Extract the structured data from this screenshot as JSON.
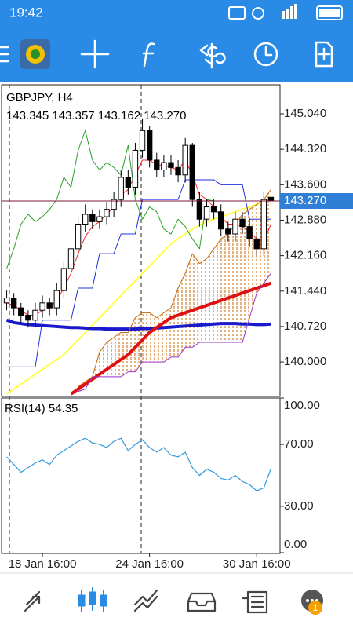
{
  "status_bar": {
    "time": "19:42"
  },
  "chart_data": {
    "type": "candlestick",
    "title": "GBPJPY, H4",
    "last_bar_labels": [
      "143.345",
      "143.357",
      "143.162",
      "143.270"
    ],
    "categories": [
      null,
      null,
      null,
      null,
      null,
      "18 Jan 16:00",
      null,
      null,
      null,
      null,
      null,
      null,
      null,
      null,
      null,
      null,
      null,
      null,
      null,
      null,
      "24 Jan 16:00",
      null,
      null,
      null,
      null,
      null,
      null,
      null,
      null,
      null,
      null,
      null,
      null,
      null,
      null,
      "30 Jan 16:00",
      null,
      null
    ],
    "open": [
      141.2,
      141.3,
      141.1,
      140.95,
      140.85,
      141.05,
      141.2,
      141.1,
      141.45,
      141.9,
      142.3,
      142.8,
      143.0,
      142.85,
      142.95,
      143.1,
      143.3,
      143.75,
      143.55,
      144.3,
      144.7,
      144.1,
      143.9,
      144.05,
      143.95,
      143.8,
      144.4,
      143.3,
      142.9,
      143.15,
      143.05,
      142.7,
      142.6,
      142.9,
      142.75,
      142.5,
      142.3,
      143.345
    ],
    "high": [
      141.45,
      141.4,
      141.2,
      141.05,
      141.2,
      141.35,
      141.3,
      141.6,
      142.05,
      142.45,
      142.95,
      143.2,
      143.1,
      143.1,
      143.25,
      143.45,
      143.9,
      143.9,
      144.45,
      144.95,
      144.8,
      144.25,
      144.2,
      144.2,
      144.1,
      144.55,
      144.45,
      143.45,
      143.3,
      143.3,
      143.2,
      142.85,
      143.05,
      143.05,
      142.9,
      142.65,
      143.45,
      143.357
    ],
    "low": [
      141.05,
      140.95,
      140.8,
      140.7,
      140.7,
      140.9,
      140.95,
      140.95,
      141.3,
      141.75,
      142.15,
      142.65,
      142.7,
      142.7,
      142.8,
      142.95,
      143.15,
      143.4,
      143.4,
      144.15,
      143.95,
      143.75,
      143.75,
      143.8,
      143.65,
      143.65,
      143.15,
      142.75,
      142.75,
      142.9,
      142.55,
      142.45,
      142.45,
      142.6,
      142.35,
      142.15,
      142.15,
      143.162
    ],
    "close": [
      141.3,
      141.1,
      140.95,
      140.85,
      141.05,
      141.2,
      141.1,
      141.45,
      141.9,
      142.3,
      142.8,
      143.0,
      142.85,
      142.95,
      143.1,
      143.3,
      143.75,
      143.55,
      144.3,
      144.7,
      144.1,
      143.9,
      144.05,
      143.95,
      143.8,
      144.4,
      143.3,
      142.9,
      143.15,
      143.05,
      142.7,
      142.6,
      142.9,
      142.75,
      142.5,
      142.3,
      143.3,
      143.27
    ],
    "ylim": [
      139.3,
      145.63
    ],
    "yticks": [
      {
        "value": 140.0,
        "label": "140.000"
      },
      {
        "value": 140.72,
        "label": "140.720"
      },
      {
        "value": 141.44,
        "label": "141.440"
      },
      {
        "value": 142.16,
        "label": "142.160"
      },
      {
        "value": 142.88,
        "label": "142.880"
      },
      {
        "value": 143.6,
        "label": "143.600"
      },
      {
        "value": 144.32,
        "label": "144.320"
      },
      {
        "value": 145.04,
        "label": "145.040"
      }
    ],
    "series": [
      {
        "color": "#ffff44",
        "width": 2,
        "values": [
          139.35,
          139.45,
          139.55,
          139.65,
          139.75,
          139.85,
          139.95,
          140.05,
          140.15,
          140.3,
          140.45,
          140.6,
          140.75,
          140.9,
          141.05,
          141.2,
          141.35,
          141.5,
          141.65,
          141.8,
          141.95,
          142.1,
          142.25,
          142.4,
          142.5,
          142.6,
          142.7,
          142.78,
          142.85,
          142.9,
          142.95,
          143.0,
          143.05,
          143.1,
          143.15,
          143.2,
          143.25,
          143.35
        ]
      },
      {
        "color": "#1a1acc",
        "width": 4,
        "values": [
          140.85,
          140.8,
          140.78,
          140.76,
          140.75,
          140.74,
          140.73,
          140.72,
          140.71,
          140.7,
          140.7,
          140.69,
          140.68,
          140.68,
          140.67,
          140.67,
          140.67,
          140.67,
          140.67,
          140.68,
          140.68,
          140.69,
          140.7,
          140.71,
          140.72,
          140.73,
          140.74,
          140.75,
          140.76,
          140.77,
          140.78,
          140.78,
          140.78,
          140.77,
          140.77,
          140.76,
          140.76,
          140.77
        ]
      },
      {
        "color": "#e01010",
        "width": 4,
        "values": [
          null,
          null,
          null,
          null,
          null,
          null,
          null,
          null,
          null,
          139.35,
          139.45,
          139.55,
          139.65,
          139.75,
          139.85,
          139.95,
          140.05,
          140.15,
          140.3,
          140.45,
          140.6,
          140.7,
          140.8,
          140.9,
          140.95,
          141.0,
          141.05,
          141.1,
          141.15,
          141.2,
          141.25,
          141.3,
          141.35,
          141.4,
          141.45,
          141.5,
          141.55,
          141.6
        ]
      },
      {
        "color": "#ff2020",
        "width": 1,
        "values": [
          141.2,
          141.15,
          141.05,
          140.95,
          140.95,
          141.05,
          141.1,
          141.25,
          141.5,
          141.8,
          142.2,
          142.55,
          142.75,
          142.85,
          143.0,
          143.15,
          143.4,
          143.5,
          143.8,
          144.1,
          144.1,
          144.0,
          144.0,
          143.95,
          143.9,
          144.1,
          143.8,
          143.4,
          143.3,
          143.15,
          142.95,
          142.8,
          142.8,
          142.75,
          142.65,
          142.5,
          142.45,
          142.8
        ]
      },
      {
        "color": "#2030e0",
        "width": 1,
        "values": [
          139.9,
          139.9,
          139.9,
          139.9,
          139.9,
          140.85,
          140.85,
          140.85,
          140.85,
          140.85,
          141.5,
          141.5,
          141.5,
          142.2,
          142.2,
          142.2,
          142.6,
          142.6,
          142.6,
          143.3,
          143.3,
          143.3,
          143.3,
          143.3,
          143.3,
          143.7,
          143.7,
          143.7,
          143.7,
          143.7,
          143.6,
          143.6,
          143.6,
          143.6,
          142.9,
          142.9,
          142.9,
          142.9
        ]
      },
      {
        "color": "#2a9d2a",
        "width": 1,
        "values": [
          141.9,
          142.3,
          142.8,
          143.0,
          142.85,
          142.95,
          143.1,
          143.3,
          143.75,
          143.55,
          144.3,
          144.7,
          144.1,
          143.9,
          144.05,
          143.95,
          143.8,
          144.4,
          143.3,
          142.9,
          143.15,
          143.05,
          142.7,
          142.6,
          142.9,
          142.75,
          142.5,
          142.3,
          143.3,
          143.27,
          null,
          null,
          null,
          null,
          null,
          null,
          null,
          null
        ]
      },
      {
        "color": "#cc6600",
        "width": 1,
        "cloud": true,
        "values": [
          null,
          null,
          null,
          null,
          null,
          null,
          null,
          null,
          null,
          null,
          139.5,
          139.6,
          139.7,
          140.2,
          140.4,
          140.5,
          140.6,
          140.6,
          140.9,
          141.0,
          141.0,
          140.9,
          141.0,
          141.1,
          141.5,
          141.8,
          142.2,
          142.0,
          142.1,
          142.3,
          142.5,
          142.6,
          142.8,
          143.0,
          143.1,
          143.2,
          143.3,
          143.5
        ]
      },
      {
        "color": "#9933cc",
        "width": 1,
        "cloud": true,
        "values": [
          null,
          null,
          null,
          null,
          null,
          null,
          null,
          null,
          null,
          null,
          139.4,
          139.45,
          139.7,
          139.7,
          139.7,
          139.7,
          139.7,
          139.8,
          139.8,
          140.0,
          140.0,
          140.0,
          140.0,
          140.1,
          140.1,
          140.3,
          140.3,
          140.4,
          140.4,
          140.4,
          140.4,
          140.4,
          140.4,
          140.4,
          140.9,
          141.4,
          141.6,
          141.8
        ]
      }
    ],
    "rsi": {
      "name": "RSI(14)",
      "color": "#3399dd",
      "values": [
        62,
        57,
        52,
        55,
        58,
        60,
        57,
        63,
        66,
        69,
        72,
        74,
        71,
        70,
        68,
        72,
        74,
        66,
        70,
        73,
        68,
        65,
        68,
        63,
        62,
        65,
        55,
        50,
        54,
        52,
        48,
        47,
        50,
        46,
        44,
        40,
        42,
        54.35
      ],
      "ylim": [
        0,
        100
      ],
      "yticks": [
        {
          "value": 0,
          "label": "0.00"
        },
        {
          "value": 30,
          "label": "30.00"
        },
        {
          "value": 70,
          "label": "70.00"
        },
        {
          "value": 100,
          "label": "100.00"
        }
      ]
    }
  },
  "nav": {
    "badge": 1
  }
}
